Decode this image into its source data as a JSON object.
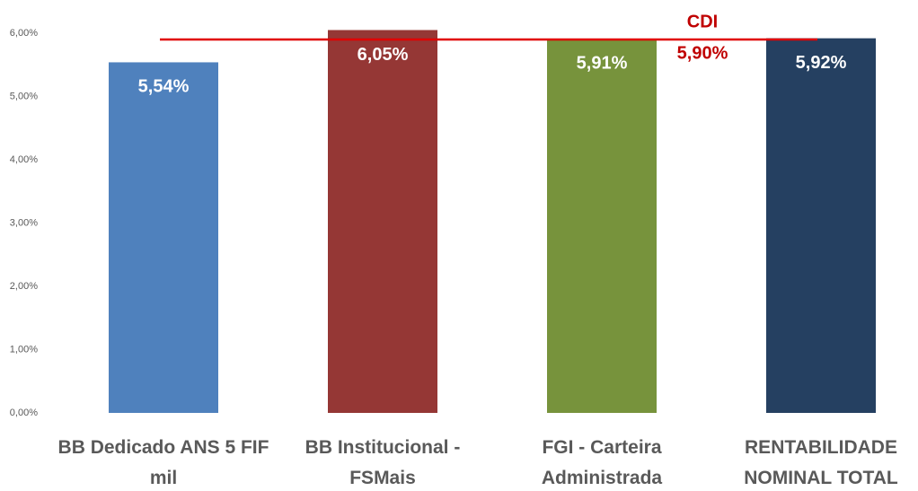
{
  "chart_data": {
    "type": "bar",
    "categories": [
      "BB Dedicado ANS 5 FIF mil",
      "BB Institucional - FSMais",
      "FGI - Carteira Administrada",
      "RENTABILIDADE NOMINAL TOTAL"
    ],
    "values": [
      5.54,
      6.05,
      5.91,
      5.92
    ],
    "value_labels": [
      "5,54%",
      "6,05%",
      "5,91%",
      "5,92%"
    ],
    "colors": [
      "#4f81bd",
      "#953735",
      "#77933c",
      "#254061"
    ],
    "ylim": [
      0,
      6
    ],
    "yticks": [
      {
        "value": 0,
        "label": "0,00%"
      },
      {
        "value": 1,
        "label": "1,00%"
      },
      {
        "value": 2,
        "label": "2,00%"
      },
      {
        "value": 3,
        "label": "3,00%"
      },
      {
        "value": 4,
        "label": "4,00%"
      },
      {
        "value": 5,
        "label": "5,00%"
      },
      {
        "value": 6,
        "label": "6,00%"
      }
    ],
    "reference_line": {
      "name": "CDI",
      "value": 5.9,
      "value_label": "5,90%",
      "color": "#e00000"
    }
  }
}
